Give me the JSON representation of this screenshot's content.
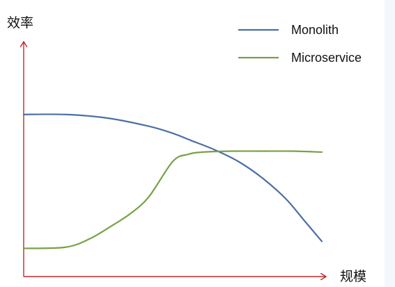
{
  "chart_data": {
    "type": "line",
    "title": "",
    "xlabel": "规模",
    "ylabel": "效率",
    "x_ticks": [],
    "y_ticks": [],
    "grid": false,
    "legend_position": "top-right",
    "axis_color": "#c0282d",
    "series": [
      {
        "name": "Monolith",
        "color": "#4a6fa5",
        "x": [
          0,
          0.14,
          0.28,
          0.42,
          0.5,
          0.56,
          0.64,
          0.72,
          0.8,
          0.88,
          0.94,
          1.0
        ],
        "y": [
          0.69,
          0.69,
          0.675,
          0.64,
          0.61,
          0.58,
          0.54,
          0.49,
          0.42,
          0.33,
          0.24,
          0.15
        ]
      },
      {
        "name": "Microservice",
        "color": "#77a145",
        "x": [
          0,
          0.14,
          0.22,
          0.3,
          0.36,
          0.42,
          0.5,
          0.55,
          0.6,
          0.7,
          0.8,
          0.9,
          1.0
        ],
        "y": [
          0.12,
          0.125,
          0.16,
          0.22,
          0.27,
          0.34,
          0.49,
          0.52,
          0.53,
          0.534,
          0.534,
          0.534,
          0.53
        ]
      }
    ]
  }
}
